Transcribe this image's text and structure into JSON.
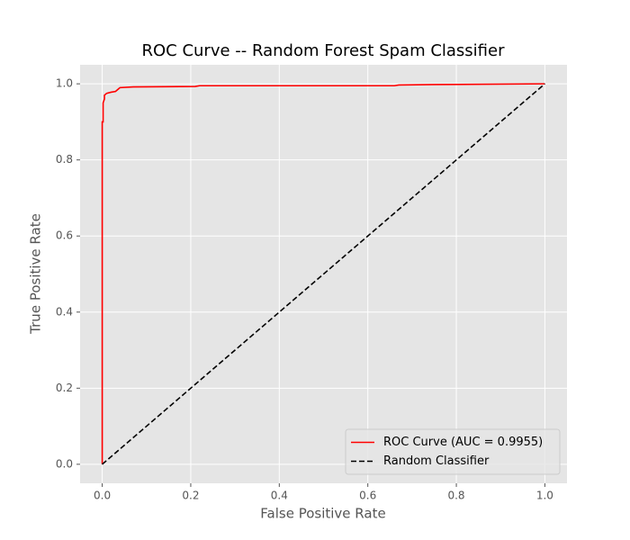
{
  "chart_data": {
    "type": "line",
    "title": "ROC Curve -- Random Forest Spam Classifier",
    "xlabel": "False Positive Rate",
    "ylabel": "True Positive Rate",
    "xlim": [
      -0.05,
      1.05
    ],
    "ylim": [
      -0.05,
      1.05
    ],
    "xticks": [
      {
        "value": 0,
        "label": "0.0"
      },
      0.2,
      0.4,
      0.6,
      0.8,
      {
        "value": 1,
        "label": "1.0"
      }
    ],
    "yticks": [
      {
        "value": 0,
        "label": "0.0"
      },
      0.2,
      0.4,
      0.6,
      0.8,
      {
        "value": 1,
        "label": "1.0"
      }
    ],
    "grid": true,
    "legend": "lower right",
    "series": [
      {
        "name": "ROC Curve (AUC = 0.9955)",
        "color": "#ff0000",
        "linestyle": "solid",
        "x": [
          0,
          0,
          0.002,
          0.002,
          0.005,
          0.005,
          0.01,
          0.02,
          0.03,
          0.035,
          0.04,
          0.07,
          0.21,
          0.22,
          0.66,
          0.67,
          0.75,
          1
        ],
        "values": [
          0,
          0.9,
          0.9,
          0.95,
          0.96,
          0.97,
          0.975,
          0.978,
          0.98,
          0.985,
          0.99,
          0.992,
          0.993,
          0.995,
          0.995,
          0.997,
          0.998,
          1
        ]
      },
      {
        "name": "Random Classifier",
        "color": "#000000",
        "linestyle": "dashed",
        "x": [
          0,
          1
        ],
        "values": [
          0,
          1
        ]
      }
    ]
  }
}
